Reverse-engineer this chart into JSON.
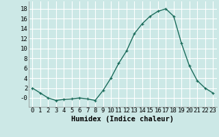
{
  "x": [
    0,
    1,
    2,
    3,
    4,
    5,
    6,
    7,
    8,
    9,
    10,
    11,
    12,
    13,
    14,
    15,
    16,
    17,
    18,
    19,
    20,
    21,
    22,
    23
  ],
  "y": [
    2,
    1,
    0,
    -0.5,
    -0.3,
    -0.2,
    0,
    -0.2,
    -0.5,
    1.5,
    4,
    7,
    9.5,
    13,
    15,
    16.5,
    17.5,
    18,
    16.5,
    11,
    6.5,
    3.5,
    2,
    1
  ],
  "line_color": "#1a6b5a",
  "marker": "+",
  "background_color": "#cce8e6",
  "grid_color": "#ffffff",
  "xlabel": "Humidex (Indice chaleur)",
  "xlim": [
    -0.5,
    23.5
  ],
  "ylim": [
    -1.8,
    19.5
  ],
  "yticks": [
    0,
    2,
    4,
    6,
    8,
    10,
    12,
    14,
    16,
    18
  ],
  "ytick_labels": [
    "-0",
    "2",
    "4",
    "6",
    "8",
    "10",
    "12",
    "14",
    "16",
    "18"
  ],
  "xtick_labels": [
    "0",
    "1",
    "2",
    "3",
    "4",
    "5",
    "6",
    "7",
    "8",
    "9",
    "10",
    "11",
    "12",
    "13",
    "14",
    "15",
    "16",
    "17",
    "18",
    "19",
    "20",
    "21",
    "22",
    "23"
  ],
  "xlabel_fontsize": 7.5,
  "tick_fontsize": 6.5,
  "linewidth": 1.0,
  "markersize": 3.5,
  "markeredgewidth": 0.9
}
